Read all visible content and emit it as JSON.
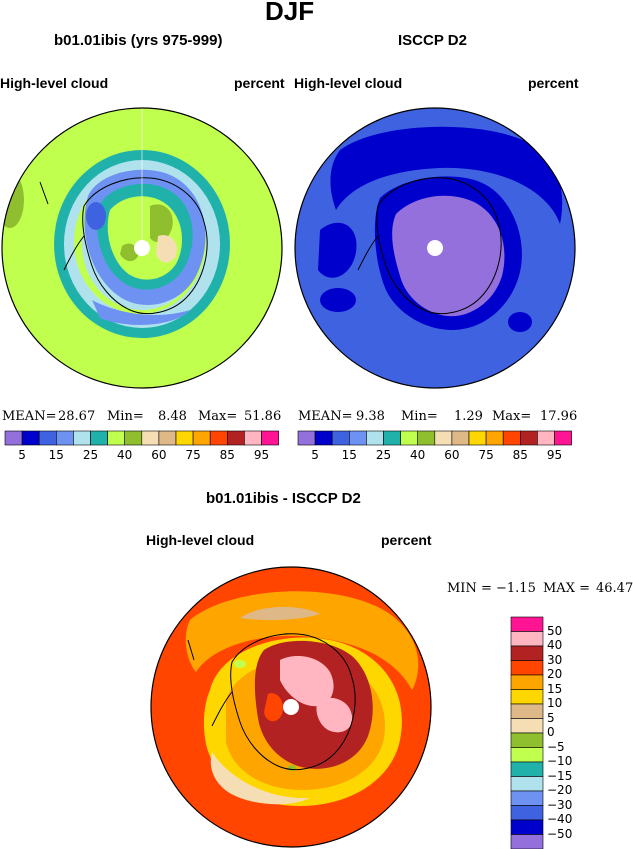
{
  "page": {
    "main_title": "DJF",
    "left_title": "b01.01ibis (yrs 975-999)",
    "right_title": "ISCCP D2",
    "diff_title": "b01.01ibis - ISCCP D2"
  },
  "panels": {
    "left": {
      "field_label": "High-level cloud",
      "units_label": "percent",
      "stats": {
        "mean_label": "MEAN=",
        "mean": "28.67",
        "min_label": "Min=",
        "min": "8.48",
        "max_label": "Max=",
        "max": "51.86"
      }
    },
    "right": {
      "field_label": "High-level cloud",
      "units_label": "percent",
      "stats": {
        "mean_label": "MEAN=",
        "mean": "9.38",
        "min_label": "Min=",
        "min": "1.29",
        "max_label": "Max=",
        "max": "17.96"
      }
    },
    "diff": {
      "field_label": "High-level cloud",
      "units_label": "percent",
      "stats": {
        "min_label": "MIN =",
        "min": "−1.15",
        "max_label": "MAX =",
        "max": "46.47"
      }
    }
  },
  "chart_data": [
    {
      "type": "heatmap",
      "name": "b01.01ibis (yrs 975-999)",
      "colorbar": {
        "colors": [
          "#9370db",
          "#0000cd",
          "#3f63e0",
          "#6e92f2",
          "#b0e2ee",
          "#20b2aa",
          "#c1ff4f",
          "#8fbf2f",
          "#f5deb3",
          "#deb887",
          "#ffd700",
          "#ffa500",
          "#ff4500",
          "#b22222",
          "#ffb6c1",
          "#ff1493"
        ],
        "tick_labels": [
          "5",
          "15",
          "25",
          "40",
          "60",
          "75",
          "85",
          "95"
        ]
      }
    },
    {
      "type": "heatmap",
      "name": "ISCCP D2",
      "colorbar": {
        "colors": [
          "#9370db",
          "#0000cd",
          "#3f63e0",
          "#6e92f2",
          "#b0e2ee",
          "#20b2aa",
          "#c1ff4f",
          "#8fbf2f",
          "#f5deb3",
          "#deb887",
          "#ffd700",
          "#ffa500",
          "#ff4500",
          "#b22222",
          "#ffb6c1",
          "#ff1493"
        ],
        "tick_labels": [
          "5",
          "15",
          "25",
          "40",
          "60",
          "75",
          "85",
          "95"
        ]
      }
    },
    {
      "type": "heatmap",
      "name": "b01.01ibis - ISCCP D2",
      "colorbar": {
        "colors": [
          "#ff1493",
          "#ffb6c1",
          "#b22222",
          "#ff4500",
          "#ffa500",
          "#ffd700",
          "#deb887",
          "#f5deb3",
          "#8fbf2f",
          "#c1ff4f",
          "#20b2aa",
          "#b0e2ee",
          "#6e92f2",
          "#3f63e0",
          "#0000cd",
          "#9370db"
        ],
        "tick_labels": [
          "50",
          "40",
          "30",
          "20",
          "15",
          "10",
          "5",
          "0",
          "−5",
          "−10",
          "−15",
          "−20",
          "−30",
          "−40",
          "−50"
        ]
      }
    }
  ]
}
